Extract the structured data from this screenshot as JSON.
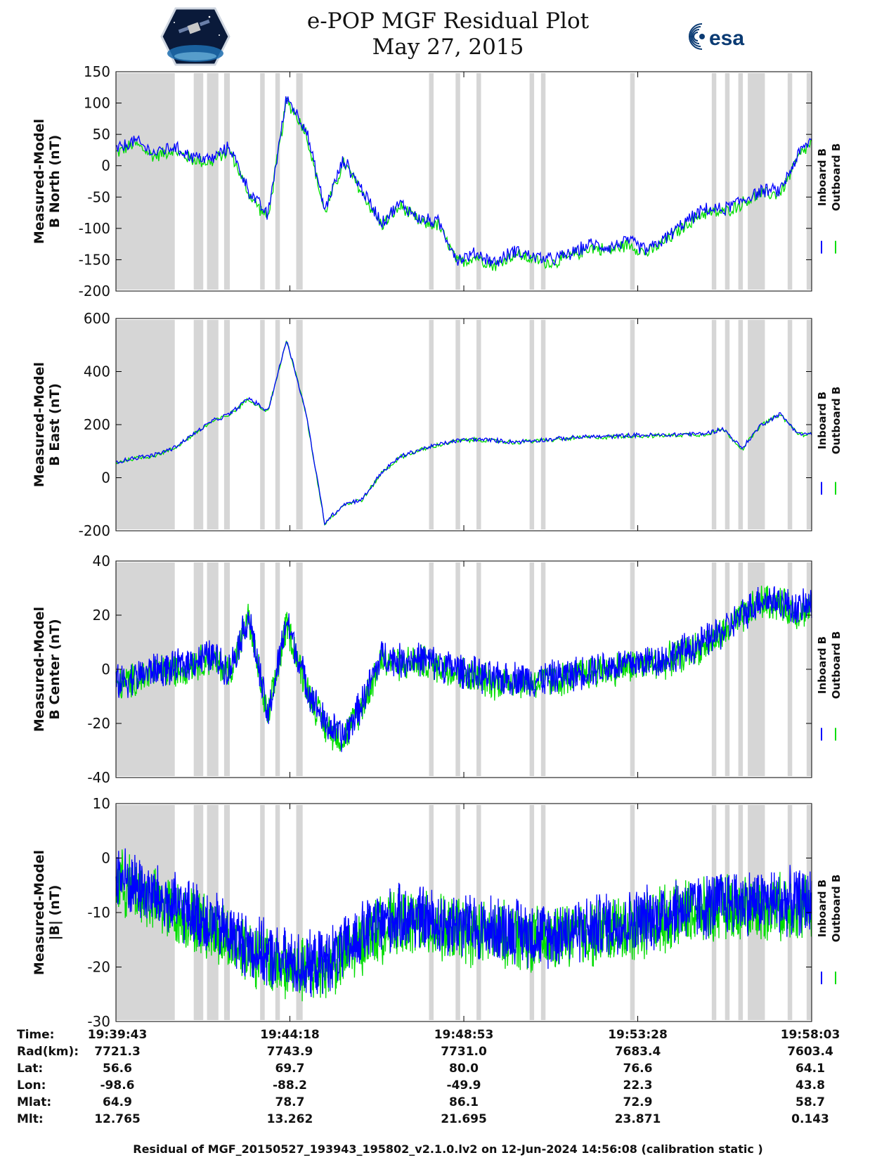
{
  "title": "e-POP MGF Residual Plot",
  "subtitle": "May 27, 2015",
  "logos": {
    "left": "cassiope-mission-logo",
    "right": "esa"
  },
  "colors": {
    "inboard": "#0000ff",
    "outboard": "#00dd00",
    "gap_shading": "#d6d6d6",
    "axis": "#000000"
  },
  "legend": {
    "placement": "right",
    "inboard_label": "Inboard B",
    "outboard_label": "Outboard B"
  },
  "chart_data": [
    {
      "type": "line",
      "ylabel_line1": "Measured-Model",
      "ylabel_line2": "B North (nT)",
      "ylim": [
        -200,
        150
      ],
      "yticks": [
        "150",
        "100",
        "50",
        "0",
        "-50",
        "-100",
        "-150",
        "-200"
      ],
      "series": [
        {
          "name": "Inboard B",
          "color": "#0000ff",
          "x": [
            0,
            0.5,
            1,
            1.5,
            2,
            2.5,
            3,
            3.5,
            4,
            4.5,
            5,
            5.5,
            6,
            6.5,
            7,
            7.5,
            8,
            8.5,
            9,
            9.5,
            10,
            10.5,
            11,
            11.5,
            12,
            12.5,
            13,
            13.5,
            14,
            14.5,
            15,
            15.5,
            16,
            16.5,
            17,
            17.5,
            18,
            18.3
          ],
          "y": [
            25,
            40,
            20,
            30,
            15,
            10,
            30,
            -40,
            -80,
            110,
            60,
            -70,
            10,
            -40,
            -90,
            -60,
            -85,
            -90,
            -150,
            -140,
            -155,
            -135,
            -145,
            -150,
            -140,
            -125,
            -130,
            -120,
            -135,
            -115,
            -90,
            -70,
            -70,
            -55,
            -40,
            -40,
            20,
            40
          ]
        },
        {
          "name": "Outboard B",
          "color": "#00dd00",
          "x": [
            0,
            0.5,
            1,
            1.5,
            2,
            2.5,
            3,
            3.5,
            4,
            4.5,
            5,
            5.5,
            6,
            6.5,
            7,
            7.5,
            8,
            8.5,
            9,
            9.5,
            10,
            10.5,
            11,
            11.5,
            12,
            12.5,
            13,
            13.5,
            14,
            14.5,
            15,
            15.5,
            16,
            16.5,
            17,
            17.5,
            18,
            18.3
          ],
          "y": [
            20,
            35,
            15,
            25,
            10,
            5,
            25,
            -45,
            -85,
            105,
            55,
            -75,
            5,
            -45,
            -95,
            -65,
            -90,
            -95,
            -155,
            -145,
            -160,
            -140,
            -150,
            -155,
            -145,
            -130,
            -135,
            -125,
            -140,
            -120,
            -95,
            -75,
            -75,
            -60,
            -45,
            -45,
            15,
            35
          ]
        }
      ]
    },
    {
      "type": "line",
      "ylabel_line1": "Measured-Model",
      "ylabel_line2": "B East (nT)",
      "ylim": [
        -200,
        600
      ],
      "yticks": [
        "600",
        "400",
        "200",
        "0",
        "-200"
      ],
      "series": [
        {
          "name": "Inboard B",
          "color": "#0000ff",
          "x": [
            0,
            0.5,
            1,
            1.5,
            2,
            2.5,
            3,
            3.5,
            4,
            4.5,
            5,
            5.5,
            6,
            6.5,
            7,
            7.5,
            8,
            8.5,
            9,
            9.5,
            10,
            10.5,
            11,
            11.5,
            12,
            12.5,
            13,
            13.5,
            14,
            14.5,
            15,
            15.5,
            16,
            16.5,
            17,
            17.5,
            18,
            18.3
          ],
          "y": [
            60,
            75,
            85,
            110,
            160,
            210,
            240,
            300,
            250,
            520,
            250,
            -170,
            -100,
            -80,
            20,
            80,
            105,
            125,
            140,
            145,
            140,
            135,
            140,
            145,
            150,
            155,
            155,
            160,
            160,
            160,
            165,
            165,
            185,
            110,
            200,
            240,
            165,
            165
          ]
        },
        {
          "name": "Outboard B",
          "color": "#00dd00",
          "x": [
            0,
            0.5,
            1,
            1.5,
            2,
            2.5,
            3,
            3.5,
            4,
            4.5,
            5,
            5.5,
            6,
            6.5,
            7,
            7.5,
            8,
            8.5,
            9,
            9.5,
            10,
            10.5,
            11,
            11.5,
            12,
            12.5,
            13,
            13.5,
            14,
            14.5,
            15,
            15.5,
            16,
            16.5,
            17,
            17.5,
            18,
            18.3
          ],
          "y": [
            58,
            73,
            83,
            108,
            158,
            208,
            238,
            298,
            248,
            518,
            248,
            -172,
            -102,
            -82,
            18,
            78,
            103,
            123,
            138,
            143,
            138,
            133,
            138,
            143,
            148,
            153,
            153,
            158,
            158,
            158,
            163,
            163,
            183,
            108,
            198,
            238,
            163,
            163
          ]
        }
      ]
    },
    {
      "type": "line",
      "ylabel_line1": "Measured-Model",
      "ylabel_line2": "B Center (nT)",
      "ylim": [
        -40,
        40
      ],
      "yticks": [
        "40",
        "20",
        "0",
        "-20",
        "-40"
      ],
      "series": [
        {
          "name": "Inboard B",
          "color": "#0000ff",
          "x": [
            0,
            0.5,
            1,
            1.5,
            2,
            2.5,
            3,
            3.5,
            4,
            4.5,
            5,
            5.5,
            6,
            6.5,
            7,
            7.5,
            8,
            8.5,
            9,
            9.5,
            10,
            10.5,
            11,
            11.5,
            12,
            12.5,
            13,
            13.5,
            14,
            14.5,
            15,
            15.5,
            16,
            16.5,
            17,
            17.5,
            18,
            18.3
          ],
          "y": [
            -5,
            -3,
            0,
            0,
            3,
            5,
            0,
            20,
            -18,
            18,
            -5,
            -20,
            -25,
            -12,
            5,
            3,
            4,
            2,
            0,
            -2,
            -4,
            -3,
            -4,
            -3,
            -2,
            0,
            1,
            2,
            3,
            4,
            7,
            10,
            14,
            20,
            26,
            25,
            22,
            24
          ]
        },
        {
          "name": "Outboard B",
          "color": "#00dd00",
          "x": [
            0,
            0.5,
            1,
            1.5,
            2,
            2.5,
            3,
            3.5,
            4,
            4.5,
            5,
            5.5,
            6,
            6.5,
            7,
            7.5,
            8,
            8.5,
            9,
            9.5,
            10,
            10.5,
            11,
            11.5,
            12,
            12.5,
            13,
            13.5,
            14,
            14.5,
            15,
            15.5,
            16,
            16.5,
            17,
            17.5,
            18,
            18.3
          ],
          "y": [
            -6,
            -4,
            -1,
            -1,
            2,
            4,
            -1,
            19,
            -19,
            17,
            -6,
            -21,
            -26,
            -13,
            4,
            2,
            3,
            1,
            -1,
            -3,
            -5,
            -4,
            -5,
            -4,
            -3,
            -1,
            0,
            1,
            2,
            3,
            6,
            9,
            13,
            19,
            25,
            24,
            21,
            23
          ]
        }
      ]
    },
    {
      "type": "line",
      "ylabel_line1": "Measured-Model",
      "ylabel_line2": "|B| (nT)",
      "ylim": [
        -30,
        10
      ],
      "yticks": [
        "10",
        "0",
        "-10",
        "-20",
        "-30"
      ],
      "series": [
        {
          "name": "Inboard B",
          "color": "#0000ff",
          "x": [
            0,
            0.5,
            1,
            1.5,
            2,
            2.5,
            3,
            3.5,
            4,
            4.5,
            5,
            5.5,
            6,
            6.5,
            7,
            7.5,
            8,
            8.5,
            9,
            9.5,
            10,
            10.5,
            11,
            11.5,
            12,
            12.5,
            13,
            13.5,
            14,
            14.5,
            15,
            15.5,
            16,
            16.5,
            17,
            17.5,
            18,
            18.3
          ],
          "y": [
            -3,
            -5,
            -7,
            -9,
            -10,
            -12,
            -14,
            -16,
            -18,
            -19,
            -20,
            -19,
            -17,
            -14,
            -12,
            -11,
            -11,
            -12,
            -12,
            -13,
            -13,
            -13,
            -14,
            -14,
            -13,
            -13,
            -12,
            -12,
            -11,
            -10,
            -9,
            -9,
            -8,
            -8,
            -8,
            -8,
            -8,
            -8
          ]
        },
        {
          "name": "Outboard B",
          "color": "#00dd00",
          "x": [
            0,
            0.5,
            1,
            1.5,
            2,
            2.5,
            3,
            3.5,
            4,
            4.5,
            5,
            5.5,
            6,
            6.5,
            7,
            7.5,
            8,
            8.5,
            9,
            9.5,
            10,
            10.5,
            11,
            11.5,
            12,
            12.5,
            13,
            13.5,
            14,
            14.5,
            15,
            15.5,
            16,
            16.5,
            17,
            17.5,
            18,
            18.3
          ],
          "y": [
            -4,
            -6,
            -8,
            -10,
            -11,
            -13,
            -15,
            -17,
            -19,
            -20,
            -21,
            -20,
            -18,
            -15,
            -13,
            -12,
            -12,
            -13,
            -13,
            -14,
            -14,
            -14,
            -15,
            -15,
            -14,
            -14,
            -13,
            -13,
            -12,
            -11,
            -10,
            -10,
            -9,
            -9,
            -9,
            -9,
            -9,
            -9
          ]
        }
      ]
    }
  ],
  "x_axis": {
    "unit": "minutes since 19:39:43",
    "xlim": [
      0,
      18.333
    ],
    "ticks": [
      0,
      4.583,
      9.167,
      13.75,
      18.333
    ],
    "gaps": [
      [
        0,
        1.55
      ],
      [
        2.05,
        2.3
      ],
      [
        2.4,
        2.7
      ],
      [
        2.85,
        3.0
      ],
      [
        3.8,
        3.92
      ],
      [
        4.2,
        4.32
      ],
      [
        4.75,
        4.92
      ],
      [
        8.25,
        8.37
      ],
      [
        8.95,
        9.07
      ],
      [
        9.5,
        9.62
      ],
      [
        10.9,
        11.02
      ],
      [
        11.2,
        11.32
      ],
      [
        13.55,
        13.67
      ],
      [
        15.7,
        15.82
      ],
      [
        16.05,
        16.17
      ],
      [
        16.4,
        16.52
      ],
      [
        16.65,
        17.1
      ],
      [
        17.7,
        17.82
      ],
      [
        18.2,
        18.333
      ]
    ]
  },
  "info_table": {
    "rows": [
      {
        "label": "Time:",
        "values": [
          "19:39:43",
          "19:44:18",
          "19:48:53",
          "19:53:28",
          "19:58:03"
        ]
      },
      {
        "label": "Rad(km):",
        "values": [
          "7721.3",
          "7743.9",
          "7731.0",
          "7683.4",
          "7603.4"
        ]
      },
      {
        "label": "Lat:",
        "values": [
          "56.6",
          "69.7",
          "80.0",
          "76.6",
          "64.1"
        ]
      },
      {
        "label": "Lon:",
        "values": [
          "-98.6",
          "-88.2",
          "-49.9",
          "22.3",
          "43.8"
        ]
      },
      {
        "label": "Mlat:",
        "values": [
          "64.9",
          "78.7",
          "86.1",
          "72.9",
          "58.7"
        ]
      },
      {
        "label": "Mlt:",
        "values": [
          "12.765",
          "13.262",
          "21.695",
          "23.871",
          "0.143"
        ]
      }
    ]
  },
  "footer": "Residual of MGF_20150527_193943_195802_v2.1.0.lv2 on 12-Jun-2024 14:56:08 (calibration static )"
}
